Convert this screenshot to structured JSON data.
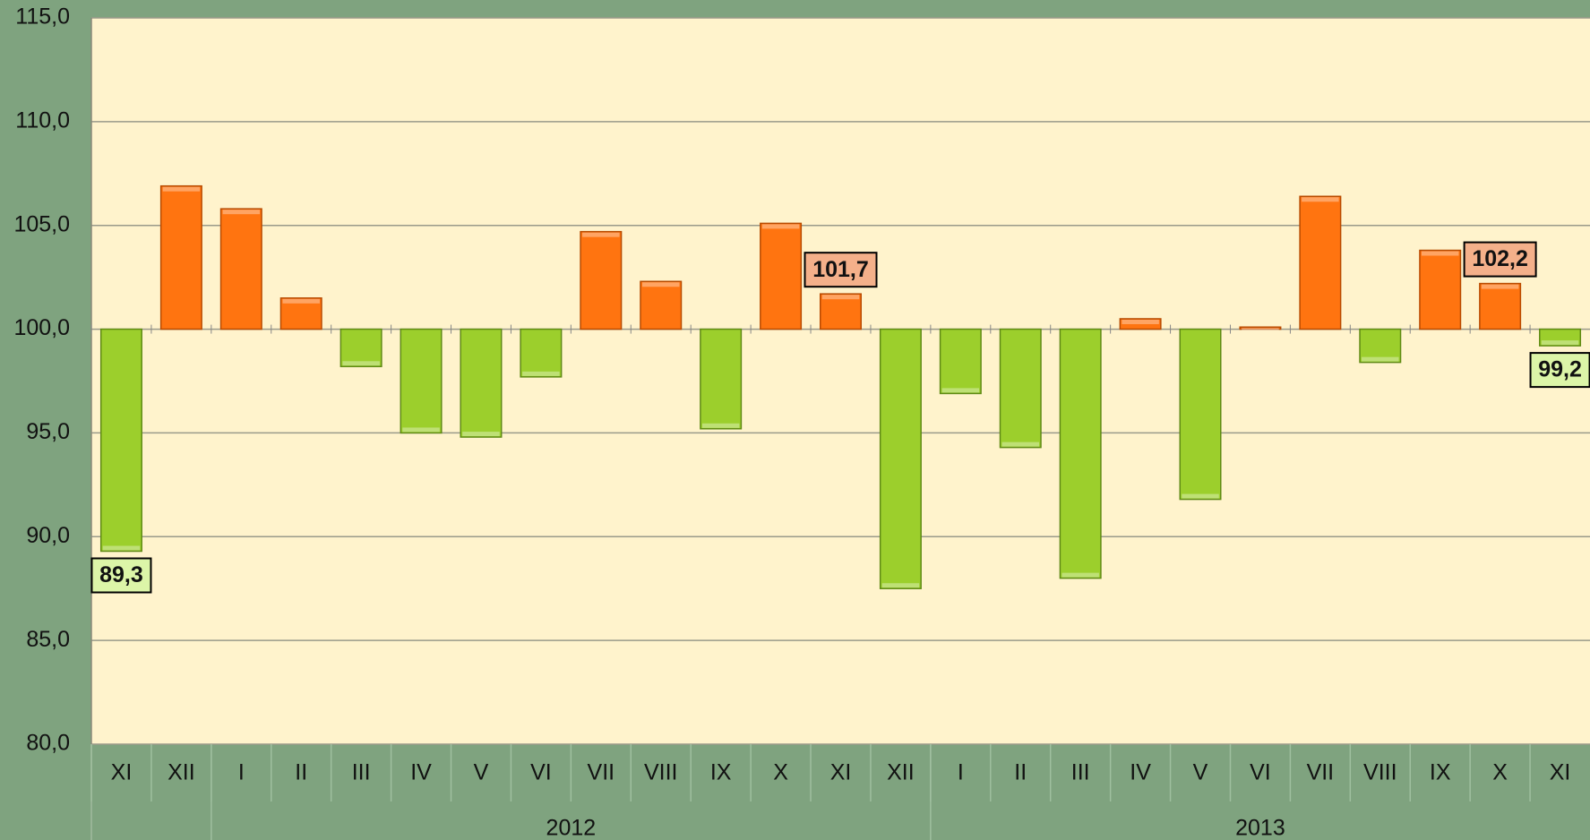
{
  "chart_data": {
    "type": "bar",
    "categories": [
      "XI",
      "XII",
      "I",
      "II",
      "III",
      "IV",
      "V",
      "VI",
      "VII",
      "VIII",
      "IX",
      "X",
      "XI",
      "XII",
      "I",
      "II",
      "III",
      "IV",
      "V",
      "VI",
      "VII",
      "VIII",
      "IX",
      "X",
      "XI"
    ],
    "values": [
      89.3,
      106.9,
      105.8,
      101.5,
      98.2,
      95.0,
      94.8,
      97.7,
      104.7,
      102.3,
      95.2,
      105.1,
      101.7,
      87.5,
      96.9,
      94.3,
      88.0,
      100.5,
      91.8,
      100.1,
      106.4,
      98.4,
      103.8,
      102.2,
      99.2
    ],
    "value_labels": [
      "89,3",
      null,
      null,
      null,
      null,
      null,
      null,
      null,
      null,
      null,
      null,
      null,
      "101,7",
      null,
      null,
      null,
      null,
      null,
      null,
      null,
      null,
      null,
      null,
      "102,2",
      "99,2"
    ],
    "groups": [
      {
        "label": null,
        "count": 2
      },
      {
        "label": "2012",
        "count": 12
      },
      {
        "label": "2013",
        "count": 11
      }
    ],
    "baseline": 100,
    "colors": {
      "up": "#ff7410",
      "down": "#9ccf2c"
    },
    "ylim": [
      80,
      115
    ],
    "yticks": [
      {
        "value": 80,
        "label": "80,0"
      },
      {
        "value": 85,
        "label": "85,0"
      },
      {
        "value": 90,
        "label": "90,0"
      },
      {
        "value": 95,
        "label": "95,0"
      },
      {
        "value": 100,
        "label": "100,0"
      },
      {
        "value": 105,
        "label": "105,0"
      },
      {
        "value": 110,
        "label": "110,0"
      },
      {
        "value": 115,
        "label": "115,0"
      }
    ],
    "grid": true
  }
}
